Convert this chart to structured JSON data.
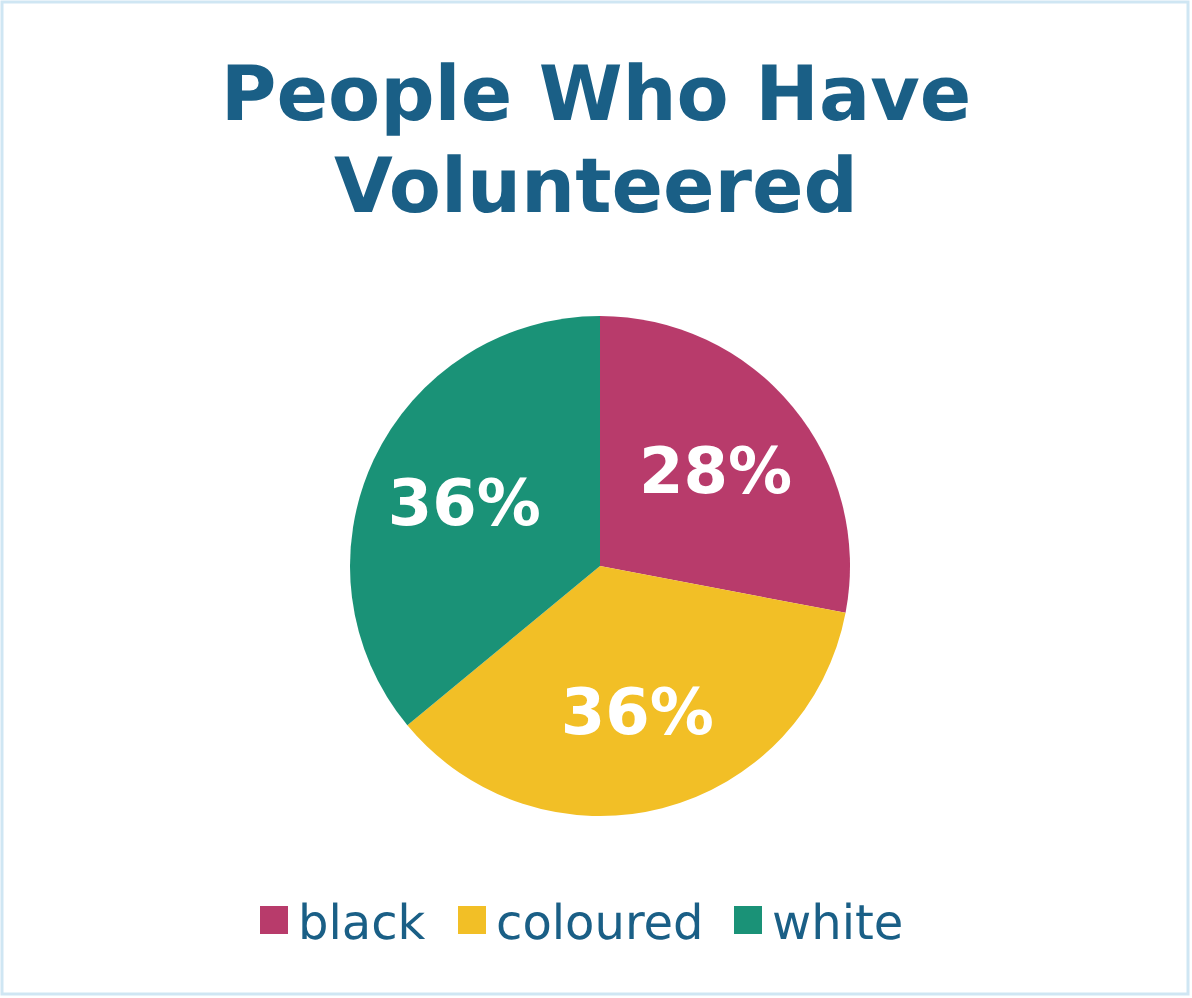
{
  "chart_data": {
    "type": "pie",
    "title": "People Who Have Volunteered",
    "categories": [
      "black",
      "coloured",
      "white"
    ],
    "values": [
      28,
      36,
      36
    ],
    "colors": [
      "#b83b6b",
      "#f2bf26",
      "#1a9277"
    ],
    "value_labels": [
      "28%",
      "36%",
      "36%"
    ],
    "legend": "bottom"
  }
}
